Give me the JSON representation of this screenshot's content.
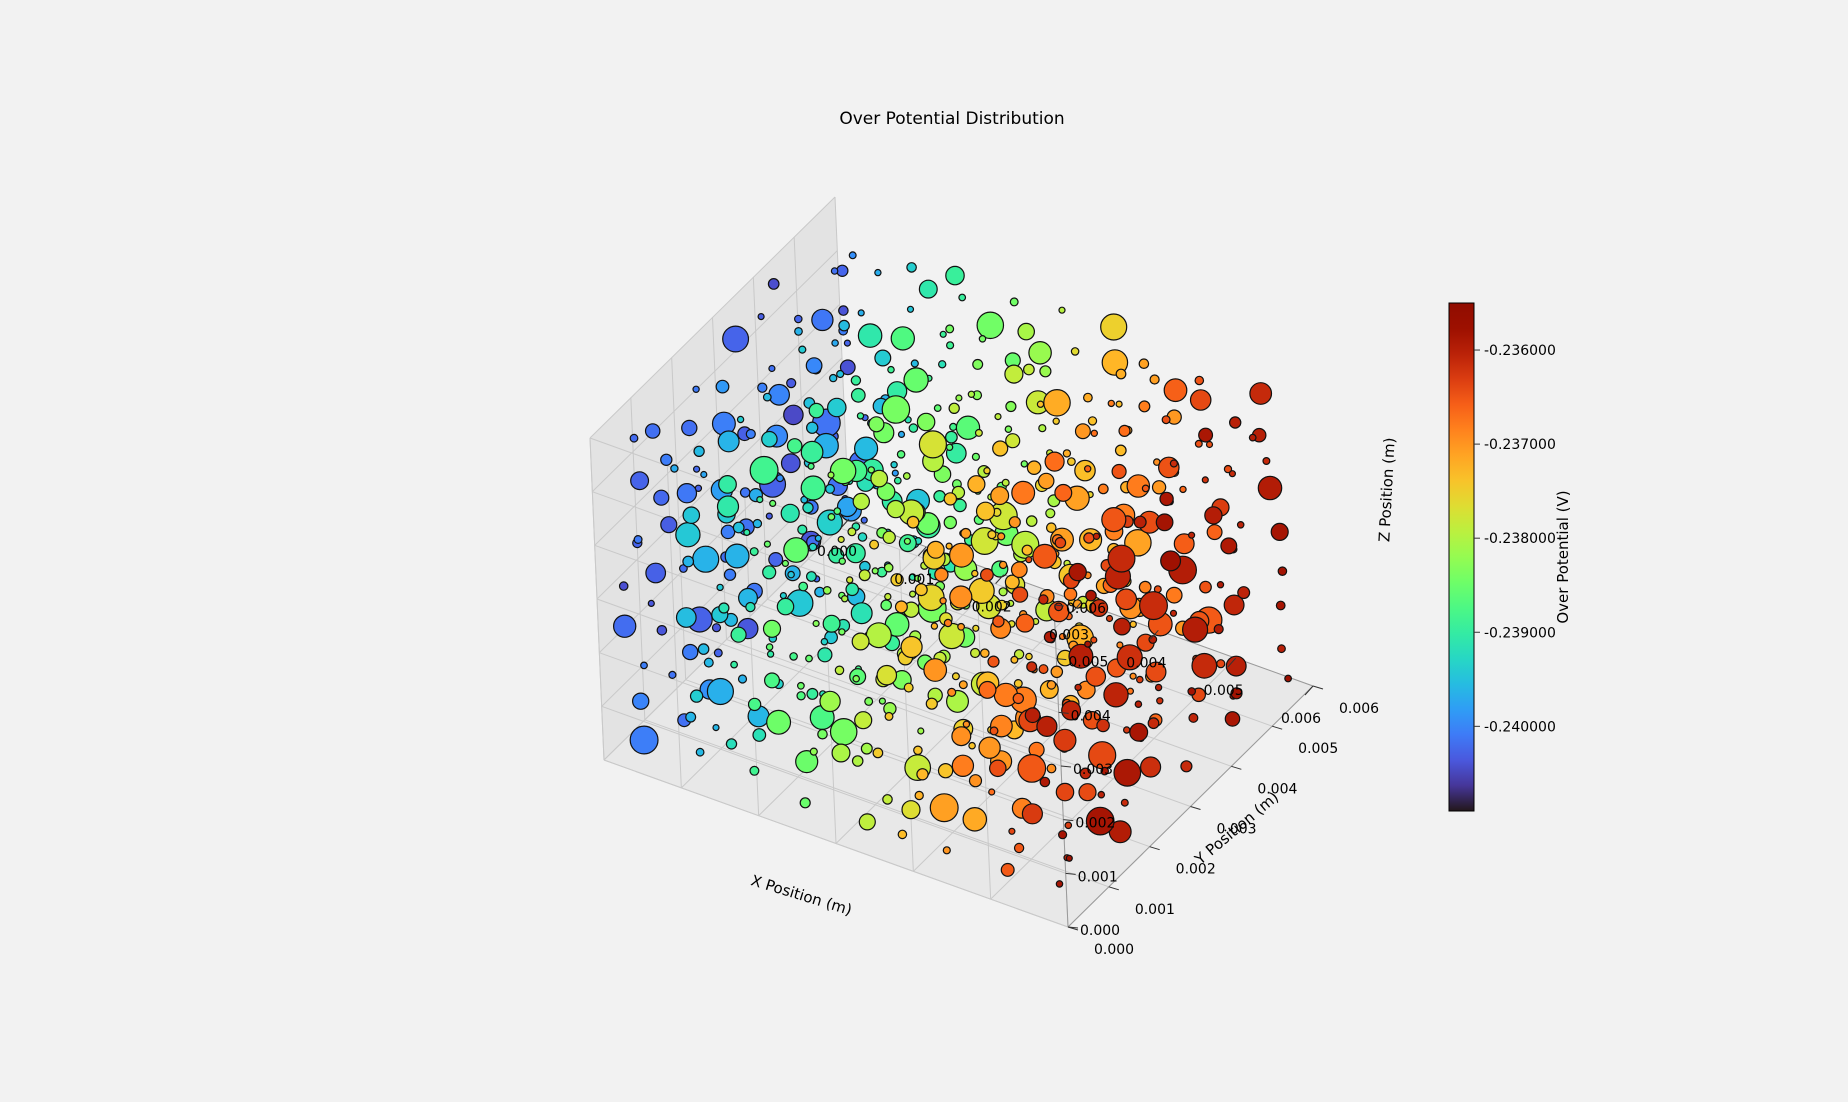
{
  "chart_data": {
    "type": "scatter3d",
    "title": "Over Potential Distribution",
    "xlabel": "X Position (m)",
    "ylabel": "Y Position (m)",
    "zlabel": "Z Position (m)",
    "xlim": [
      0,
      0.006
    ],
    "ylim": [
      0,
      0.006
    ],
    "zlim": [
      0,
      0.006
    ],
    "x_ticks": [
      "0.000",
      "0.001",
      "0.002",
      "0.003",
      "0.004",
      "0.005",
      "0.006"
    ],
    "y_ticks": [
      "0.000",
      "0.001",
      "0.002",
      "0.003",
      "0.004",
      "0.005",
      "0.006"
    ],
    "z_ticks": [
      "0.000",
      "0.001",
      "0.002",
      "0.003",
      "0.004",
      "0.005",
      "0.006"
    ],
    "colorbar": {
      "label": "Over Potential (V)",
      "colormap": "turbo",
      "vmin": -0.2409,
      "vmax": -0.2355,
      "ticks": [
        -0.236,
        -0.237,
        -0.238,
        -0.239,
        -0.24
      ],
      "tick_labels": [
        "-0.236000",
        "-0.237000",
        "-0.238000",
        "-0.239000",
        "-0.240000"
      ]
    },
    "color_trend": "Over potential increases along X: about -0.2407 V at X = 0.000 m to about -0.2356 V at X = 0.006 m",
    "grid": true
  }
}
